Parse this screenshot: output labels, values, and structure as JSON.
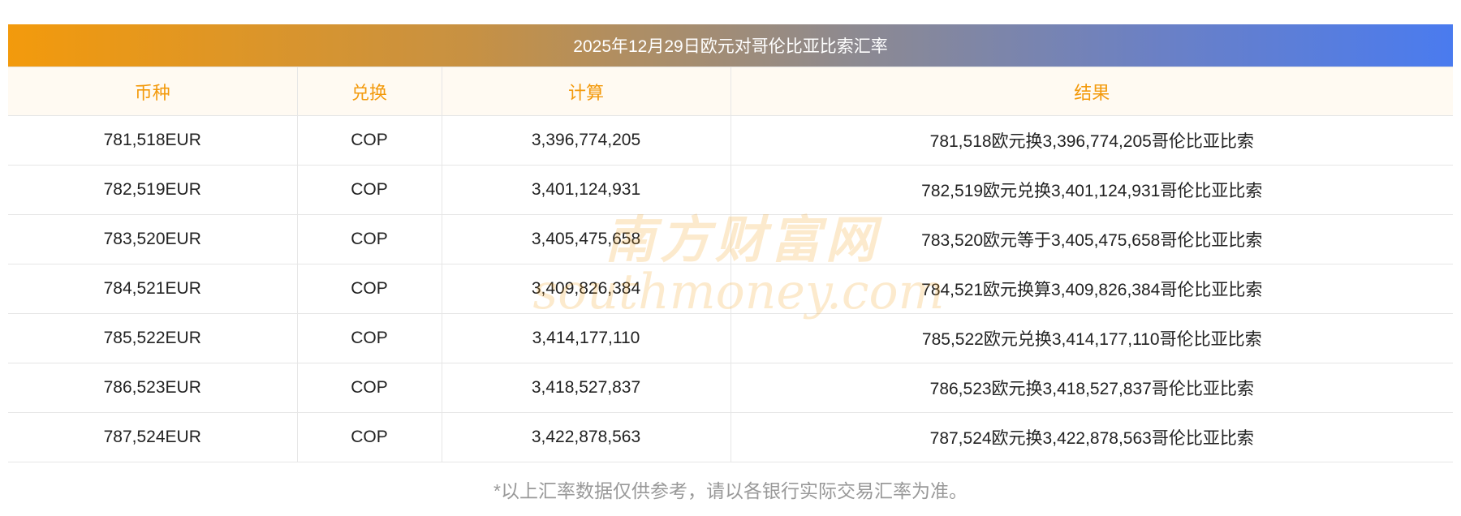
{
  "title": "2025年12月29日欧元对哥伦比亚比索汇率",
  "columns": [
    "币种",
    "兑换",
    "计算",
    "结果"
  ],
  "rows": [
    {
      "currency": "781,518EUR",
      "target": "COP",
      "amount": "3,396,774,205",
      "result": "781,518欧元换3,396,774,205哥伦比亚比索"
    },
    {
      "currency": "782,519EUR",
      "target": "COP",
      "amount": "3,401,124,931",
      "result": "782,519欧元兑换3,401,124,931哥伦比亚比索"
    },
    {
      "currency": "783,520EUR",
      "target": "COP",
      "amount": "3,405,475,658",
      "result": "783,520欧元等于3,405,475,658哥伦比亚比索"
    },
    {
      "currency": "784,521EUR",
      "target": "COP",
      "amount": "3,409,826,384",
      "result": "784,521欧元换算3,409,826,384哥伦比亚比索"
    },
    {
      "currency": "785,522EUR",
      "target": "COP",
      "amount": "3,414,177,110",
      "result": "785,522欧元兑换3,414,177,110哥伦比亚比索"
    },
    {
      "currency": "786,523EUR",
      "target": "COP",
      "amount": "3,418,527,837",
      "result": "786,523欧元换3,418,527,837哥伦比亚比索"
    },
    {
      "currency": "787,524EUR",
      "target": "COP",
      "amount": "3,422,878,563",
      "result": "787,524欧元换3,422,878,563哥伦比亚比索"
    }
  ],
  "watermark": {
    "text_cn": "南方财富网",
    "text_en": "southmoney.com",
    "color": "#f39a0c"
  },
  "footnote": "*以上汇率数据仅供参考，请以各银行实际交易汇率为准。",
  "colors": {
    "header_text": "#f39a0c",
    "header_bg": "#fffaf2",
    "gradient_start": "#f39a0c",
    "gradient_end": "#4a7bef"
  }
}
